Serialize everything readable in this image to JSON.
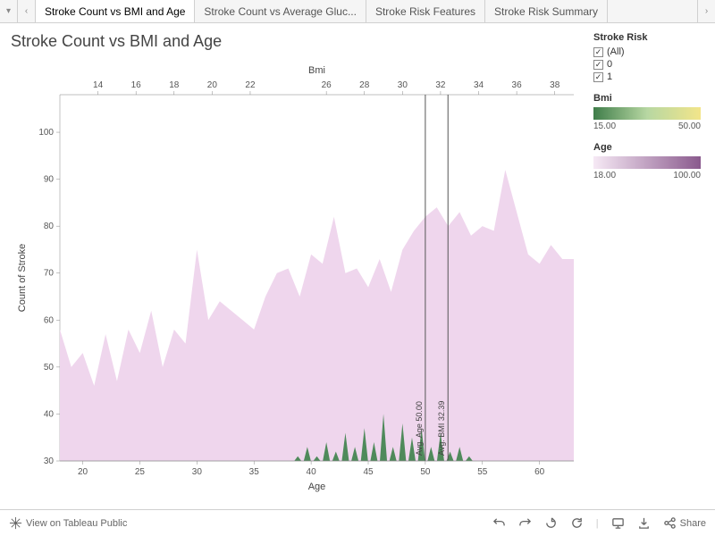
{
  "tabs": {
    "items": [
      {
        "label": "Stroke Count vs BMI and Age",
        "active": true
      },
      {
        "label": "Stroke Count vs Average Gluc...",
        "active": false
      },
      {
        "label": "Stroke Risk Features",
        "active": false
      },
      {
        "label": "Stroke Risk Summary",
        "active": false
      }
    ]
  },
  "chart": {
    "title": "Stroke Count vs BMI and Age",
    "x_bottom": {
      "title": "Age",
      "min": 18,
      "max": 63,
      "ticks": [
        20,
        25,
        30,
        35,
        40,
        45,
        50,
        55,
        60
      ]
    },
    "x_top": {
      "title": "Bmi",
      "min": 12,
      "max": 39,
      "ticks": [
        14,
        16,
        18,
        20,
        22,
        26,
        28,
        30,
        32,
        34,
        36,
        38
      ]
    },
    "y": {
      "title": "Count of Stroke",
      "min": 30,
      "max": 108,
      "ticks": [
        30,
        40,
        50,
        60,
        70,
        80,
        90,
        100
      ]
    },
    "age_series": {
      "color": "#efd6ed",
      "x": [
        18,
        19,
        20,
        21,
        22,
        23,
        24,
        25,
        26,
        27,
        28,
        29,
        30,
        31,
        32,
        33,
        34,
        35,
        36,
        37,
        38,
        39,
        40,
        41,
        42,
        43,
        44,
        45,
        46,
        47,
        48,
        49,
        50,
        51,
        52,
        53,
        54,
        55,
        56,
        57,
        58,
        59,
        60,
        61,
        62,
        63
      ],
      "y": [
        58,
        50,
        53,
        46,
        57,
        47,
        58,
        53,
        62,
        50,
        58,
        55,
        75,
        60,
        64,
        62,
        60,
        58,
        65,
        70,
        71,
        65,
        74,
        72,
        82,
        70,
        71,
        67,
        73,
        66,
        75,
        79,
        82,
        84,
        80,
        83,
        78,
        80,
        79,
        92,
        83,
        74,
        72,
        76,
        73,
        73
      ]
    },
    "bmi_series": {
      "color": "#4f8a5b",
      "points": [
        {
          "bmi": 24.5,
          "y": 31
        },
        {
          "bmi": 25,
          "y": 33
        },
        {
          "bmi": 25.5,
          "y": 31
        },
        {
          "bmi": 26,
          "y": 34
        },
        {
          "bmi": 26.5,
          "y": 32
        },
        {
          "bmi": 27,
          "y": 36
        },
        {
          "bmi": 27.5,
          "y": 33
        },
        {
          "bmi": 28,
          "y": 37
        },
        {
          "bmi": 28.5,
          "y": 34
        },
        {
          "bmi": 29,
          "y": 40
        },
        {
          "bmi": 29.5,
          "y": 33
        },
        {
          "bmi": 30,
          "y": 38
        },
        {
          "bmi": 30.5,
          "y": 35
        },
        {
          "bmi": 31,
          "y": 37
        },
        {
          "bmi": 31.5,
          "y": 33
        },
        {
          "bmi": 32,
          "y": 36
        },
        {
          "bmi": 32.5,
          "y": 32
        },
        {
          "bmi": 33,
          "y": 33
        },
        {
          "bmi": 33.5,
          "y": 31
        }
      ]
    },
    "reflines": [
      {
        "label": "Avg. Age 50.00",
        "axis": "age",
        "value": 50.0
      },
      {
        "label": "Avg. BMI 32.39",
        "axis": "bmi",
        "value": 32.39
      }
    ],
    "plot": {
      "bg": "#ffffff",
      "border": "#aaaaaa"
    }
  },
  "legend": {
    "risk": {
      "title": "Stroke Risk",
      "items": [
        {
          "label": "(All)",
          "checked": true
        },
        {
          "label": "0",
          "checked": true
        },
        {
          "label": "1",
          "checked": true
        }
      ]
    },
    "bmi": {
      "title": "Bmi",
      "min": "15.00",
      "max": "50.00",
      "grad_from": "#3f7d4a",
      "grad_mid": "#b7d7a2",
      "grad_to": "#f2e58a"
    },
    "age": {
      "title": "Age",
      "min": "18.00",
      "max": "100.00",
      "grad_from": "#f6e9f5",
      "grad_to": "#8a5a8d"
    }
  },
  "footer": {
    "view_label": "View on Tableau Public",
    "share_label": "Share"
  }
}
